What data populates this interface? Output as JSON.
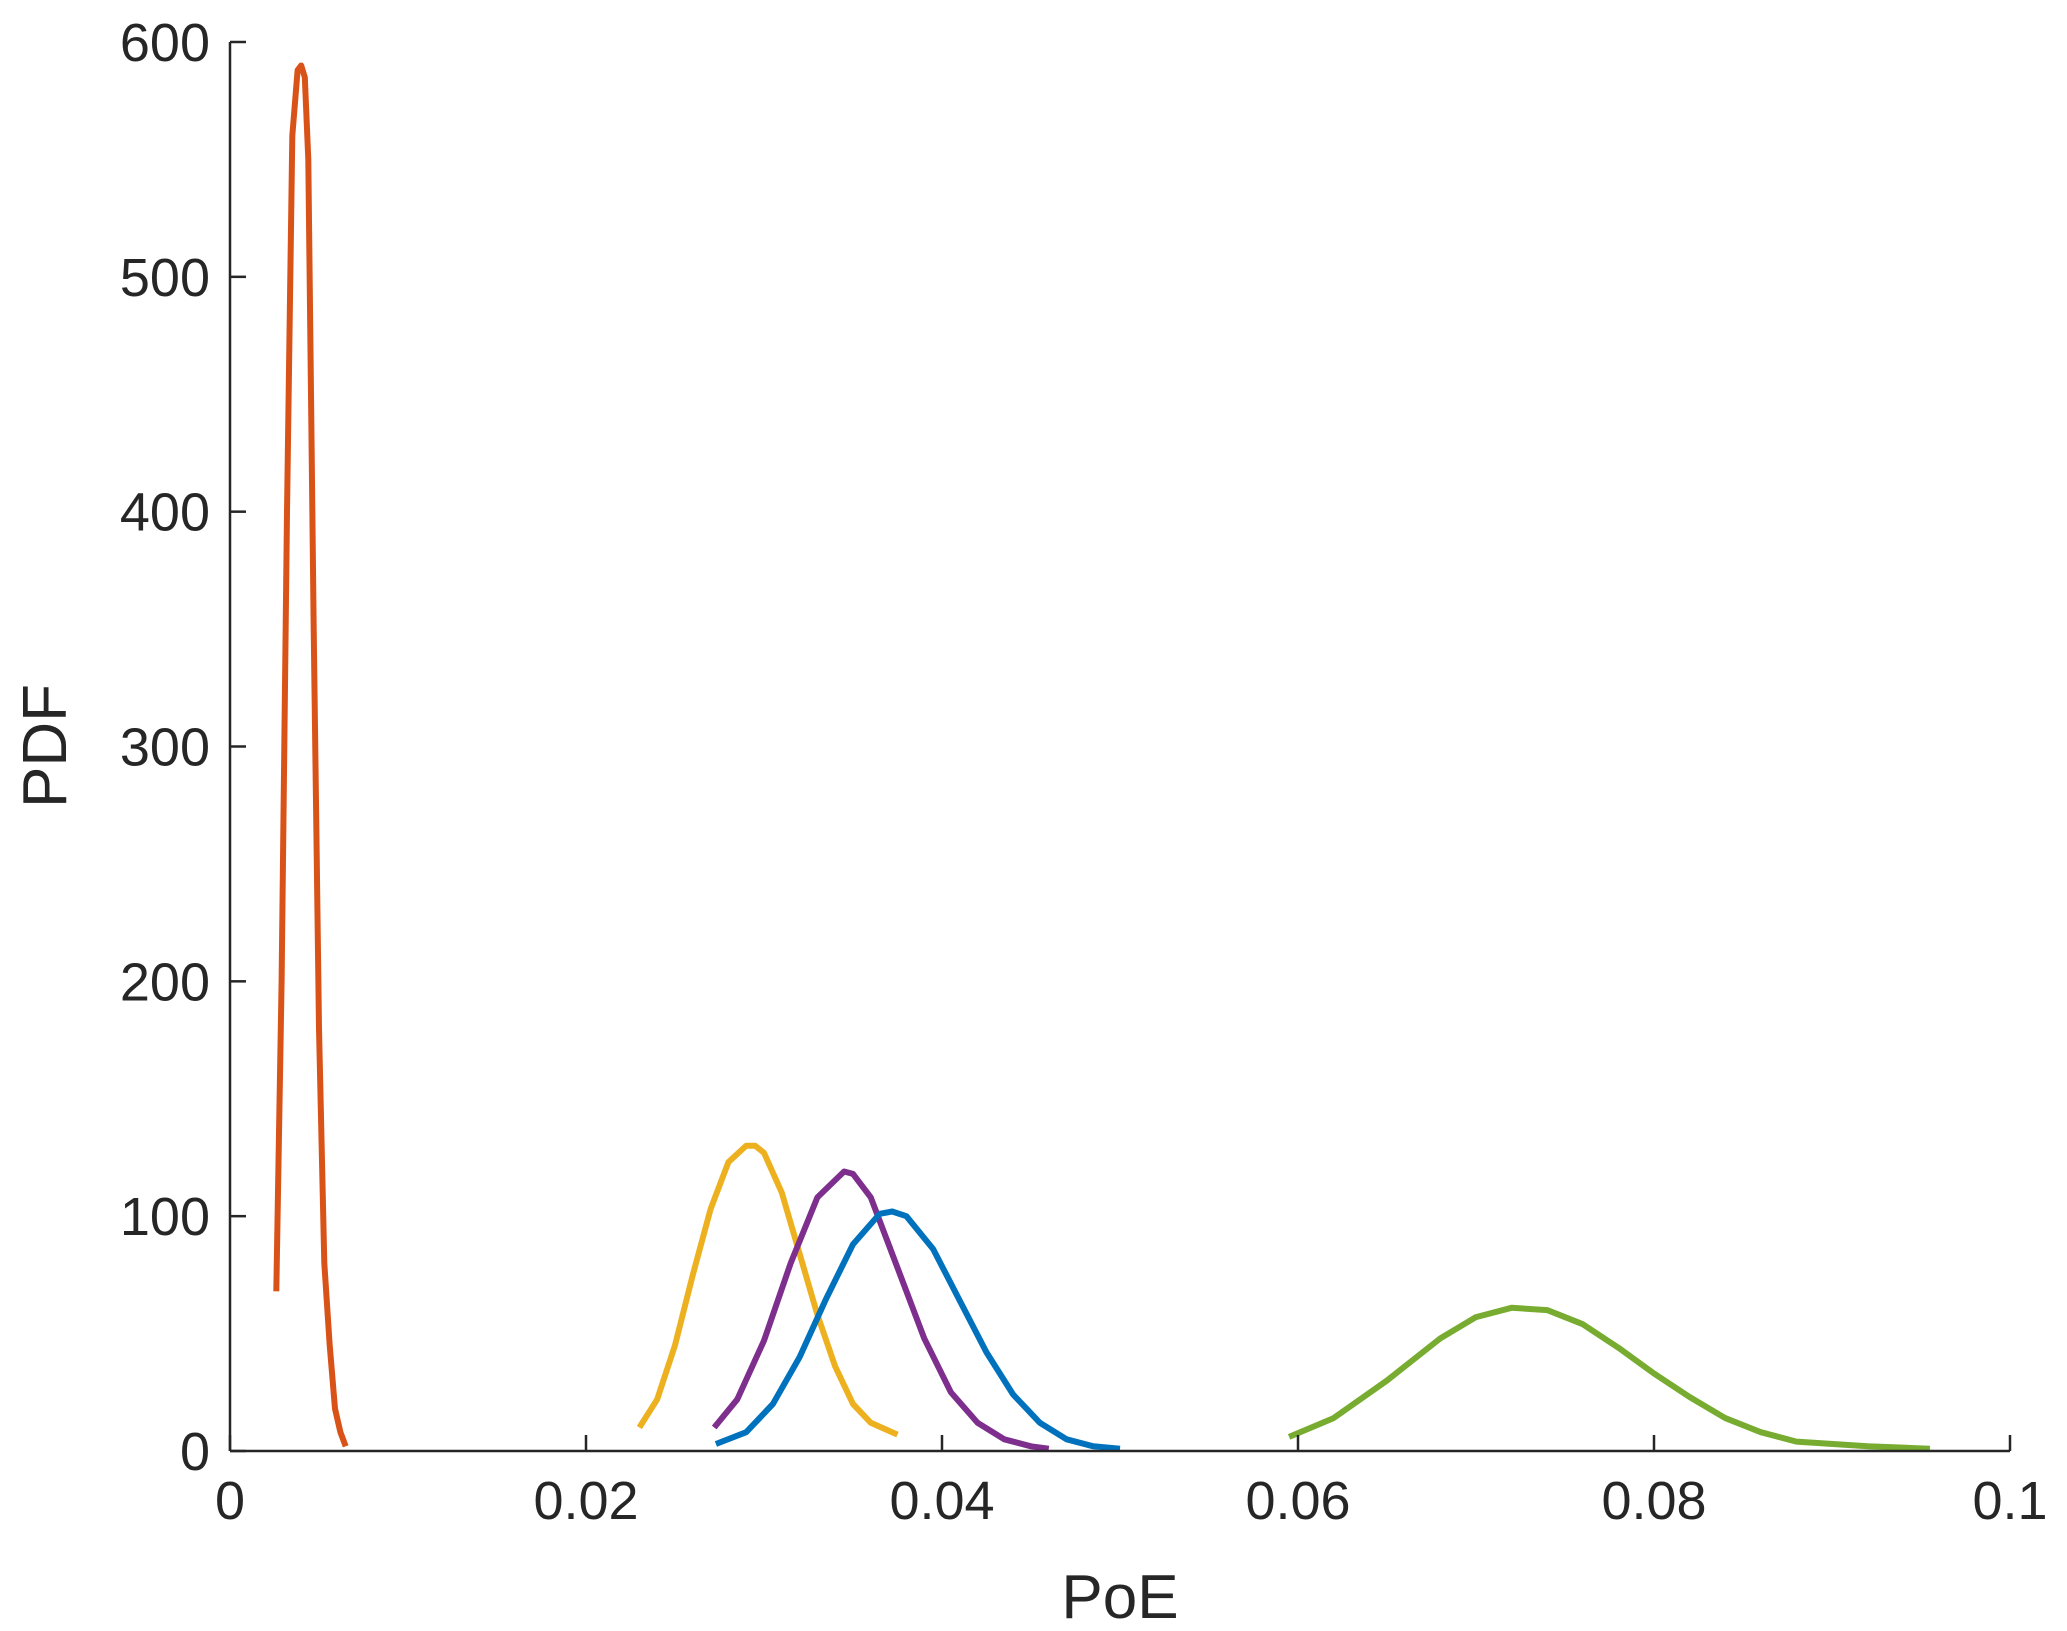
{
  "chart_data": {
    "type": "line",
    "xlabel": "PoE",
    "ylabel": "PDF",
    "xlim": [
      0,
      0.1
    ],
    "ylim": [
      0,
      600
    ],
    "xticks": [
      0,
      0.02,
      0.04,
      0.06,
      0.08,
      0.1
    ],
    "xtick_labels": [
      "0",
      "0.02",
      "0.04",
      "0.06",
      "0.08",
      "0.1"
    ],
    "yticks": [
      0,
      100,
      200,
      300,
      400,
      500,
      600
    ],
    "ytick_labels": [
      "0",
      "100",
      "200",
      "300",
      "400",
      "500",
      "600"
    ],
    "grid": false,
    "legend": "none",
    "series": [
      {
        "color": "#D95319",
        "x": [
          0.0026,
          0.0029,
          0.0032,
          0.0035,
          0.0038,
          0.004,
          0.0042,
          0.0044,
          0.0047,
          0.005,
          0.0053,
          0.0056,
          0.0059,
          0.0062,
          0.0065
        ],
        "y": [
          68,
          200,
          400,
          560,
          588,
          590,
          585,
          550,
          350,
          180,
          80,
          45,
          18,
          8,
          2
        ]
      },
      {
        "color": "#EDB120",
        "x": [
          0.023,
          0.024,
          0.025,
          0.026,
          0.027,
          0.028,
          0.029,
          0.0295,
          0.03,
          0.031,
          0.032,
          0.033,
          0.034,
          0.035,
          0.036,
          0.0375
        ],
        "y": [
          10,
          22,
          45,
          75,
          103,
          123,
          130,
          130,
          127,
          110,
          84,
          58,
          36,
          20,
          12,
          7
        ]
      },
      {
        "color": "#7E2F8E",
        "x": [
          0.0272,
          0.0285,
          0.03,
          0.0315,
          0.033,
          0.0345,
          0.035,
          0.036,
          0.0375,
          0.039,
          0.0405,
          0.042,
          0.0435,
          0.045,
          0.046
        ],
        "y": [
          10,
          22,
          47,
          80,
          108,
          119,
          118,
          108,
          78,
          48,
          25,
          12,
          5,
          2,
          1
        ]
      },
      {
        "color": "#0072BD",
        "x": [
          0.0273,
          0.029,
          0.0305,
          0.032,
          0.0335,
          0.035,
          0.0365,
          0.0372,
          0.038,
          0.0395,
          0.041,
          0.0425,
          0.044,
          0.0455,
          0.047,
          0.0485,
          0.05
        ],
        "y": [
          3,
          8,
          20,
          40,
          65,
          88,
          101,
          102,
          100,
          86,
          64,
          42,
          24,
          12,
          5,
          2,
          1
        ]
      },
      {
        "color": "#77AC30",
        "x": [
          0.0595,
          0.062,
          0.065,
          0.068,
          0.07,
          0.072,
          0.074,
          0.076,
          0.078,
          0.08,
          0.082,
          0.084,
          0.086,
          0.088,
          0.092,
          0.0955
        ],
        "y": [
          6,
          14,
          30,
          48,
          57,
          61,
          60,
          54,
          44,
          33,
          23,
          14,
          8,
          4,
          2,
          1
        ]
      }
    ]
  }
}
